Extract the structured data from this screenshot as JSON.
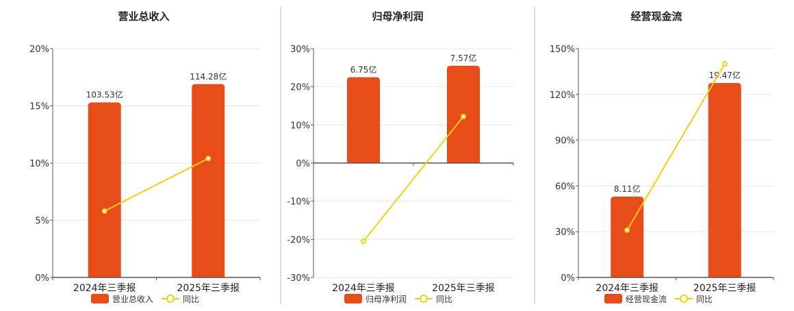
{
  "charts": [
    {
      "title": "营业总收入",
      "legend_bar": "营业总收入",
      "legend_line": "同比"
    },
    {
      "title": "归母净利润",
      "legend_bar": "归母净利润",
      "legend_line": "同比"
    },
    {
      "title": "经营现金流",
      "legend_bar": "经营现金流",
      "legend_line": "同比"
    }
  ],
  "colors": {
    "bar": "#e84c19",
    "line": "#f0d010",
    "grid": "#e6e6ee",
    "axis": "#555555",
    "divider": "#bbbbbb"
  },
  "chart_data": [
    {
      "type": "bar",
      "title": "营业总收入",
      "categories": [
        "2024年三季报",
        "2025年三季报"
      ],
      "series": [
        {
          "name": "营业总收入",
          "type": "bar",
          "values": [
            15.3,
            16.9
          ],
          "data_labels": [
            "103.53亿",
            "114.28亿"
          ]
        },
        {
          "name": "同比",
          "type": "line",
          "values": [
            5.8,
            10.4
          ]
        }
      ],
      "y_ticks": [
        "0%",
        "5%",
        "10%",
        "15%",
        "20%"
      ],
      "ylim": [
        0,
        20
      ],
      "grid": true,
      "legend_position": "bottom"
    },
    {
      "type": "bar",
      "title": "归母净利润",
      "categories": [
        "2024年三季报",
        "2025年三季报"
      ],
      "series": [
        {
          "name": "归母净利润",
          "type": "bar",
          "values": [
            22.5,
            25.5
          ],
          "data_labels": [
            "6.75亿",
            "7.57亿"
          ]
        },
        {
          "name": "同比",
          "type": "line",
          "values": [
            -20.5,
            12.2
          ]
        }
      ],
      "y_ticks": [
        "-30%",
        "-20%",
        "-10%",
        "0%",
        "10%",
        "20%",
        "30%"
      ],
      "ylim": [
        -30,
        30
      ],
      "grid": true,
      "legend_position": "bottom"
    },
    {
      "type": "bar",
      "title": "经营现金流",
      "categories": [
        "2024年三季报",
        "2025年三季报"
      ],
      "series": [
        {
          "name": "经营现金流",
          "type": "bar",
          "values": [
            53,
            127.5
          ],
          "data_labels": [
            "8.11亿",
            "19.47亿"
          ]
        },
        {
          "name": "同比",
          "type": "line",
          "values": [
            31,
            140
          ]
        }
      ],
      "y_ticks": [
        "0%",
        "30%",
        "60%",
        "90%",
        "120%",
        "150%"
      ],
      "ylim": [
        0,
        150
      ],
      "grid": true,
      "legend_position": "bottom"
    }
  ]
}
